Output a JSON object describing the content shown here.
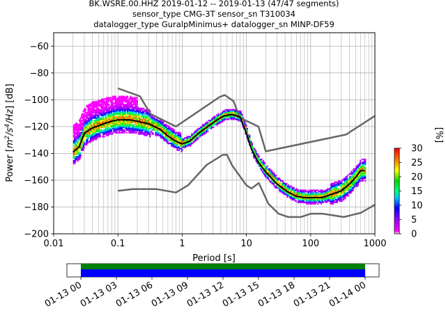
{
  "title_lines": [
    "BK.WSRE.00.HHZ   2019-01-12 -- 2019-01-13  (47/47 segments)",
    "sensor_type CMG-3T sensor_sn T310034",
    "datalogger_type GuralpMinimus+ datalogger_sn MINP-DF59"
  ],
  "chart_data": {
    "type": "heatmap",
    "xlabel": "Period [s]",
    "ylabel": "Power [m2/s4/Hz] [dB]",
    "xscale": "log",
    "xlim": [
      0.01,
      1000
    ],
    "ylim": [
      -200,
      -50
    ],
    "x_ticks": [
      0.01,
      0.1,
      1,
      10,
      100,
      1000
    ],
    "x_tick_labels": [
      "0.01",
      "0.1",
      "1",
      "10",
      "100",
      "1000"
    ],
    "y_ticks": [
      -200,
      -180,
      -160,
      -140,
      -120,
      -100,
      -80,
      -60
    ],
    "y_tick_labels": [
      "−200",
      "−180",
      "−160",
      "−140",
      "−120",
      "−100",
      "−80",
      "−60"
    ],
    "grid": true,
    "series": [
      {
        "name": "mode",
        "color": "#000000",
        "x": [
          0.02,
          0.025,
          0.03,
          0.04,
          0.06,
          0.08,
          0.1,
          0.15,
          0.2,
          0.3,
          0.45,
          0.6,
          0.8,
          1.0,
          1.3,
          1.8,
          2.5,
          3.5,
          4.5,
          6,
          8,
          10,
          12,
          15,
          20,
          30,
          45,
          60,
          80,
          100,
          150,
          200,
          300,
          400,
          500,
          600,
          700
        ],
        "y": [
          -139,
          -135,
          -125,
          -121,
          -118,
          -116,
          -115,
          -115,
          -116,
          -118,
          -122,
          -127,
          -131,
          -133,
          -131,
          -125,
          -120,
          -115,
          -112,
          -111,
          -113,
          -125,
          -137,
          -146,
          -154,
          -163,
          -169,
          -172,
          -173,
          -173,
          -173,
          -171,
          -168,
          -163,
          -158,
          -153,
          -153
        ]
      },
      {
        "name": "new high noise model",
        "color": "#666666",
        "x": [
          0.1,
          0.22,
          0.32,
          0.8,
          3.8,
          4.6,
          6.3,
          7.9,
          15.4,
          20,
          354.8,
          1000
        ],
        "y": [
          -91.5,
          -97.4,
          -110.5,
          -120,
          -98,
          -96.5,
          -101,
          -113.5,
          -120,
          -138.5,
          -126,
          -112
        ]
      },
      {
        "name": "new low noise model",
        "color": "#666666",
        "x": [
          0.1,
          0.17,
          0.4,
          0.8,
          1.24,
          2.4,
          4.3,
          5,
          6,
          10,
          12,
          15.6,
          21.9,
          31.6,
          45,
          70,
          101,
          154,
          328,
          600,
          1000
        ],
        "y": [
          -168,
          -166.7,
          -166.7,
          -169.2,
          -163.7,
          -148.6,
          -141.1,
          -141.1,
          -149,
          -163.8,
          -166.2,
          -162.1,
          -177.5,
          -185,
          -187.5,
          -187.5,
          -185,
          -185,
          -187.5,
          -184.4,
          -178.3
        ]
      }
    ],
    "colorbar": {
      "label": "[%]",
      "range": [
        0,
        30
      ],
      "ticks": [
        0,
        5,
        10,
        15,
        20,
        25,
        30
      ],
      "tick_labels": [
        "0",
        "5",
        "10",
        "15",
        "20",
        "25",
        "30"
      ],
      "colormap": "pqlx"
    },
    "timeline": {
      "tick_labels": [
        "01-13 00",
        "01-13 03",
        "01-13 06",
        "01-13 09",
        "01-13 12",
        "01-13 15",
        "01-13 18",
        "01-13 21",
        "01-14 00"
      ],
      "segments": 47,
      "bar_colors": [
        "#008000",
        "#0000ff"
      ]
    }
  }
}
